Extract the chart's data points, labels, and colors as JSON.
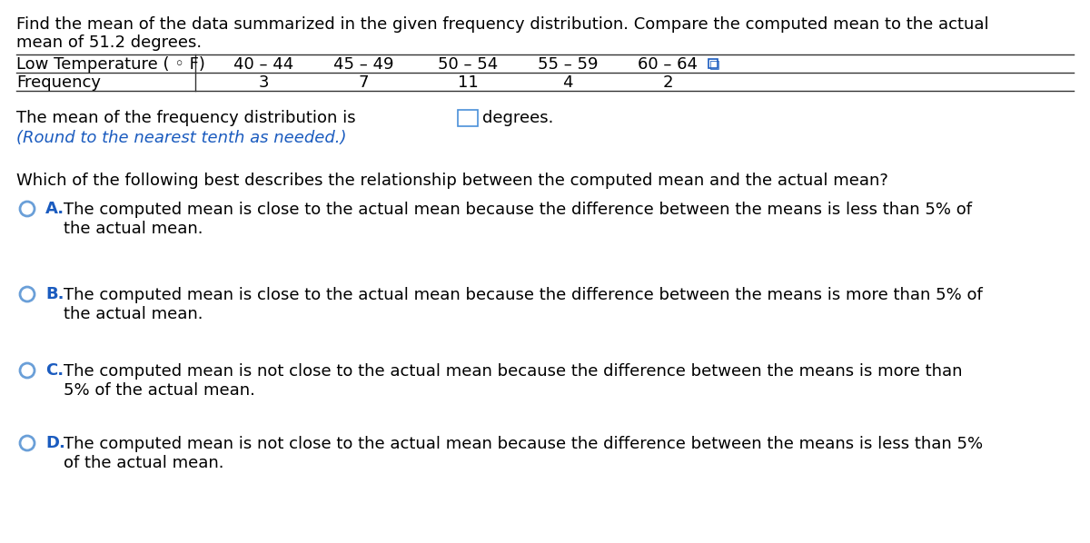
{
  "title_line1": "Find the mean of the data summarized in the given frequency distribution. Compare the computed mean to the actual",
  "title_line2": "mean of 51.2 degrees.",
  "table_header_col0": "Low Temperature ( ◦ F)",
  "table_header_cols": [
    "40 – 44",
    "45 – 49",
    "50 – 54",
    "55 – 59",
    "60 – 64"
  ],
  "table_row_label": "Frequency",
  "table_frequencies": [
    "3",
    "7",
    "11",
    "4",
    "2"
  ],
  "mean_text_before": "The mean of the frequency distribution is",
  "mean_text_after": "degrees.",
  "round_note": "(Round to the nearest tenth as needed.)",
  "question": "Which of the following best describes the relationship between the computed mean and the actual mean?",
  "options": [
    {
      "label": "A.",
      "text": "The computed mean is close to the actual mean because the difference between the means is less than 5% of\nthe actual mean."
    },
    {
      "label": "B.",
      "text": "The computed mean is close to the actual mean because the difference between the means is more than 5% of\nthe actual mean."
    },
    {
      "label": "C.",
      "text": "The computed mean is not close to the actual mean because the difference between the means is more than\n5% of the actual mean."
    },
    {
      "label": "D.",
      "text": "The computed mean is not close to the actual mean because the difference between the means is less than 5%\nof the actual mean."
    }
  ],
  "bg_color": "#ffffff",
  "text_color": "#000000",
  "blue_color": "#1a5bbf",
  "font_size_main": 13.0,
  "line_color": "#333333"
}
